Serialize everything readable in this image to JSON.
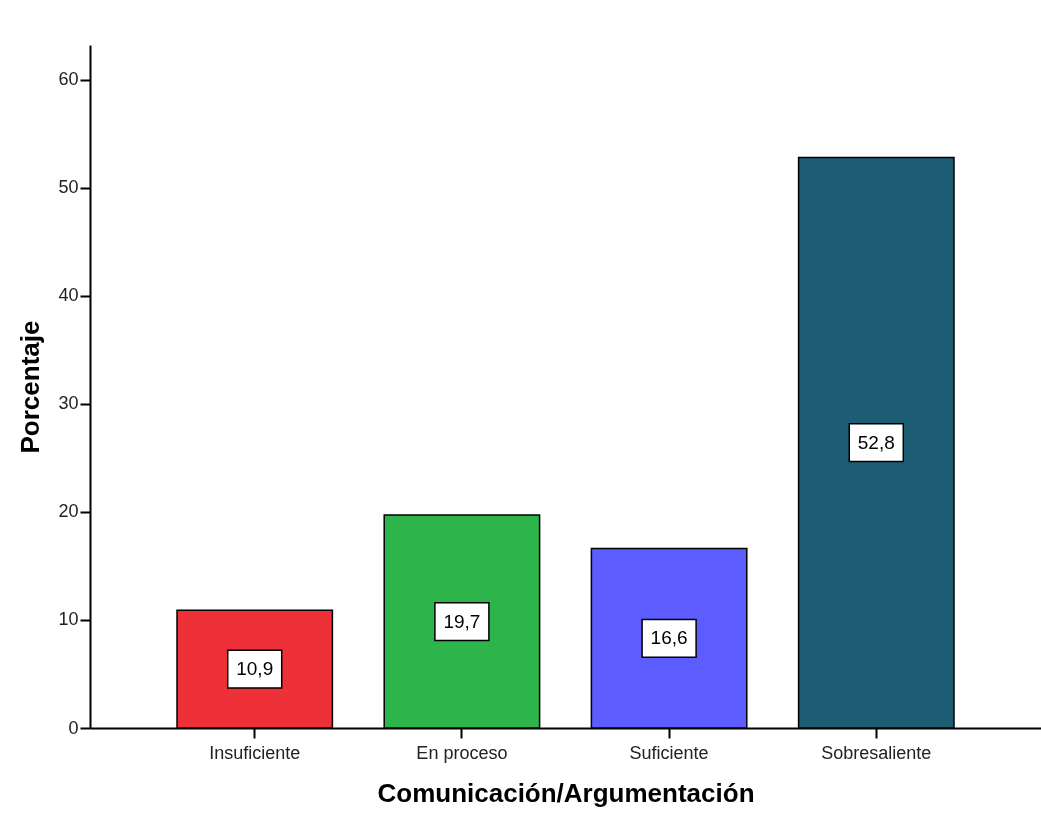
{
  "chart_data": {
    "type": "bar",
    "xlabel": "Comunicación/Argumentación",
    "ylabel": "Porcentaje",
    "categories": [
      "Insuficiente",
      "En proceso",
      "Suficiente",
      "Sobresaliente"
    ],
    "values": [
      10.9,
      19.7,
      16.6,
      52.8
    ],
    "colors": [
      "#ee3038",
      "#2db44a",
      "#5c5cff",
      "#1d5d73"
    ],
    "value_labels": [
      "10,9",
      "19,7",
      "16,6",
      "52,8"
    ],
    "ylim": [
      0,
      63.2
    ],
    "yticks": [
      0,
      10,
      20,
      30,
      40,
      50,
      60
    ]
  }
}
